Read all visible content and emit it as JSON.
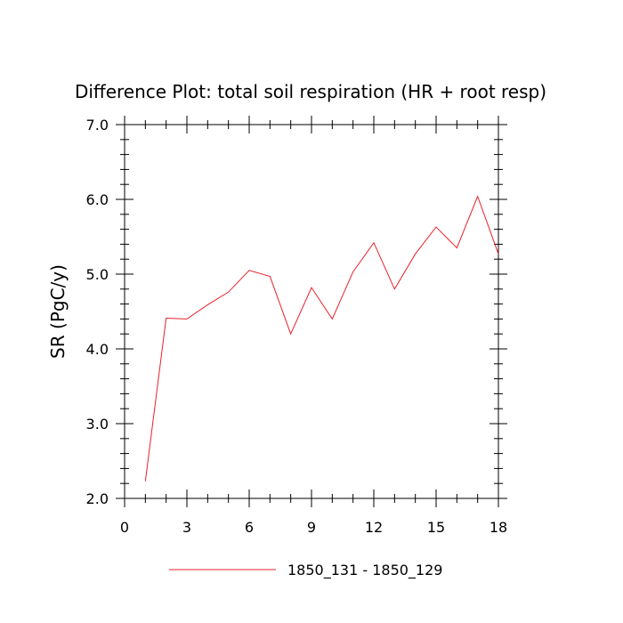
{
  "chart_data": {
    "type": "line",
    "title": "Difference Plot: total soil respiration (HR + root resp)",
    "xlabel": "",
    "ylabel": "SR  (PgC/y)",
    "xlim": [
      0,
      18
    ],
    "ylim": [
      2.0,
      7.0
    ],
    "x_ticks": [
      0,
      3,
      6,
      9,
      12,
      15,
      18
    ],
    "x_tick_labels": [
      "0",
      "3",
      "6",
      "9",
      "12",
      "15",
      "18"
    ],
    "y_ticks": [
      2.0,
      3.0,
      4.0,
      5.0,
      6.0,
      7.0
    ],
    "y_tick_labels": [
      "2.0",
      "3.0",
      "4.0",
      "5.0",
      "6.0",
      "7.0"
    ],
    "grid": false,
    "legend_position": "bottom",
    "series": [
      {
        "name": "1850_131 - 1850_129",
        "color": "#e8202a",
        "x": [
          1,
          2,
          3,
          4,
          5,
          6,
          7,
          8,
          9,
          10,
          11,
          12,
          13,
          14,
          15,
          16,
          17,
          18
        ],
        "y": [
          2.23,
          4.41,
          4.4,
          4.59,
          4.76,
          5.05,
          4.97,
          4.2,
          4.82,
          4.4,
          5.03,
          5.42,
          4.8,
          5.27,
          5.63,
          5.35,
          6.04,
          5.27
        ]
      }
    ]
  }
}
